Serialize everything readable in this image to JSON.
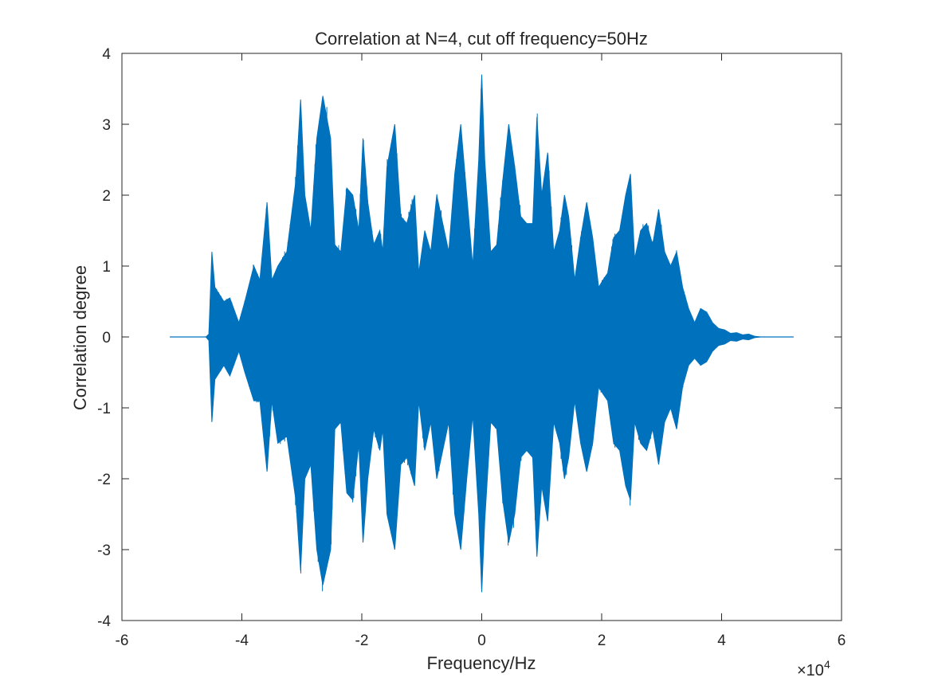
{
  "chart_data": {
    "type": "line",
    "title": "Correlation at N=4, cut off frequency=50Hz",
    "xlabel": "Frequency/Hz",
    "ylabel": "Correlation degree",
    "x_multiplier_label": "×10",
    "x_multiplier_exponent": "4",
    "xlim": [
      -6,
      6
    ],
    "ylim": [
      -4,
      4
    ],
    "x_unit_scale": 10000,
    "x_ticks": [
      -6,
      -4,
      -2,
      0,
      2,
      4,
      6
    ],
    "x_tick_labels": [
      "-6",
      "-4",
      "-2",
      "0",
      "2",
      "4",
      "6"
    ],
    "y_ticks": [
      -4,
      -3,
      -2,
      -1,
      0,
      1,
      2,
      3,
      4
    ],
    "y_tick_labels": [
      "-4",
      "-3",
      "-2",
      "-1",
      "0",
      "1",
      "2",
      "3",
      "4"
    ],
    "grid": false,
    "series": [
      {
        "color": "#0072BD",
        "x_range": [
          -52000,
          52000
        ],
        "envelope_upper": {
          "x": [
            -52000,
            -46000,
            -45500,
            -45000,
            -44500,
            -43000,
            -42000,
            -40500,
            -39500,
            -38000,
            -37000,
            -35800,
            -35000,
            -34000,
            -32500,
            -31000,
            -30200,
            -29500,
            -28500,
            -27500,
            -26500,
            -25200,
            -24500,
            -23500,
            -22500,
            -21500,
            -20500,
            -19800,
            -19000,
            -18000,
            -17000,
            -16500,
            -15800,
            -14500,
            -13500,
            -12500,
            -11200,
            -10500,
            -9500,
            -8500,
            -7500,
            -6500,
            -5500,
            -4500,
            -3500,
            -2500,
            -1500,
            -500,
            0,
            500,
            1500,
            2500,
            3500,
            4500,
            5500,
            6500,
            7500,
            8500,
            9200,
            10000,
            11000,
            12000,
            13000,
            13800,
            14500,
            15500,
            16500,
            17500,
            18500,
            19500,
            20200,
            21000,
            22000,
            23000,
            24000,
            24800,
            25500,
            26500,
            27500,
            28500,
            29500,
            30500,
            31500,
            32500,
            33500,
            34500,
            35500,
            36500,
            37500,
            38500,
            39500,
            40500,
            41500,
            42500,
            43500,
            44500,
            45500,
            46500,
            52000
          ],
          "y": [
            0,
            0,
            0.04,
            1.2,
            0.7,
            0.5,
            0.55,
            0.2,
            0.5,
            1.0,
            0.8,
            1.9,
            0.8,
            1.0,
            1.2,
            2.2,
            3.35,
            2.0,
            1.5,
            2.8,
            3.4,
            2.8,
            1.3,
            1.2,
            2.1,
            2.0,
            1.5,
            2.8,
            1.9,
            1.3,
            1.5,
            1.2,
            2.4,
            3.0,
            1.7,
            1.6,
            2.0,
            0.9,
            1.5,
            1.2,
            2.0,
            1.6,
            1.2,
            2.3,
            3.0,
            2.0,
            1.0,
            2.5,
            3.7,
            2.5,
            1.2,
            1.3,
            2.2,
            3.0,
            2.4,
            1.7,
            1.6,
            1.6,
            3.1,
            2.0,
            2.6,
            1.2,
            1.5,
            2.0,
            1.7,
            0.8,
            1.4,
            1.9,
            1.4,
            0.7,
            0.8,
            0.9,
            1.4,
            1.5,
            2.0,
            2.3,
            1.1,
            1.5,
            1.6,
            1.3,
            1.8,
            1.2,
            1.0,
            1.2,
            0.7,
            0.4,
            0.2,
            0.4,
            0.35,
            0.2,
            0.12,
            0.1,
            0.05,
            0.06,
            0.03,
            0.04,
            0.01,
            0.0,
            0
          ]
        },
        "envelope_lower": {
          "x": [
            -52000,
            -46000,
            -45500,
            -45000,
            -44500,
            -43000,
            -42000,
            -40500,
            -39500,
            -38000,
            -37000,
            -35800,
            -35000,
            -34000,
            -32500,
            -31000,
            -30200,
            -29500,
            -28500,
            -27500,
            -26500,
            -25200,
            -24500,
            -23500,
            -22500,
            -21500,
            -20500,
            -19800,
            -19000,
            -18000,
            -17000,
            -16500,
            -15800,
            -14500,
            -13500,
            -12500,
            -11200,
            -10500,
            -9500,
            -8500,
            -7500,
            -6500,
            -5500,
            -4500,
            -3500,
            -2500,
            -1500,
            -500,
            0,
            500,
            1500,
            2500,
            3500,
            4500,
            5500,
            6500,
            7500,
            8500,
            9200,
            10000,
            11000,
            12000,
            13000,
            13800,
            14500,
            15500,
            16500,
            17500,
            18500,
            19500,
            20200,
            21000,
            22000,
            23000,
            24000,
            24800,
            25500,
            26500,
            27500,
            28500,
            29500,
            30500,
            31500,
            32500,
            33500,
            34500,
            35500,
            36500,
            37500,
            38500,
            39500,
            40500,
            41500,
            42500,
            43500,
            44500,
            45500,
            46500,
            52000
          ],
          "y": [
            0,
            0,
            -0.05,
            -1.2,
            -0.6,
            -0.4,
            -0.55,
            -0.2,
            -0.5,
            -0.9,
            -0.9,
            -1.9,
            -0.9,
            -1.5,
            -1.4,
            -2.3,
            -3.3,
            -2.0,
            -1.8,
            -3.0,
            -3.5,
            -3.0,
            -1.3,
            -1.2,
            -2.2,
            -2.3,
            -1.5,
            -2.9,
            -2.0,
            -1.3,
            -1.6,
            -1.3,
            -2.5,
            -3.0,
            -1.8,
            -1.7,
            -2.1,
            -0.9,
            -1.6,
            -1.2,
            -2.0,
            -1.6,
            -1.2,
            -2.5,
            -3.0,
            -2.0,
            -1.1,
            -2.5,
            -3.6,
            -2.6,
            -1.2,
            -1.3,
            -2.3,
            -2.9,
            -2.5,
            -1.7,
            -1.6,
            -1.7,
            -3.1,
            -2.1,
            -2.6,
            -1.2,
            -1.5,
            -2.0,
            -1.7,
            -0.9,
            -1.5,
            -1.9,
            -1.5,
            -0.7,
            -0.8,
            -0.9,
            -1.5,
            -1.6,
            -2.1,
            -2.3,
            -1.2,
            -1.5,
            -1.6,
            -1.3,
            -1.8,
            -1.2,
            -1.0,
            -1.3,
            -0.7,
            -0.4,
            -0.3,
            -0.4,
            -0.35,
            -0.2,
            -0.12,
            -0.1,
            -0.05,
            -0.06,
            -0.03,
            -0.04,
            -0.01,
            0.0,
            0
          ]
        }
      }
    ]
  }
}
